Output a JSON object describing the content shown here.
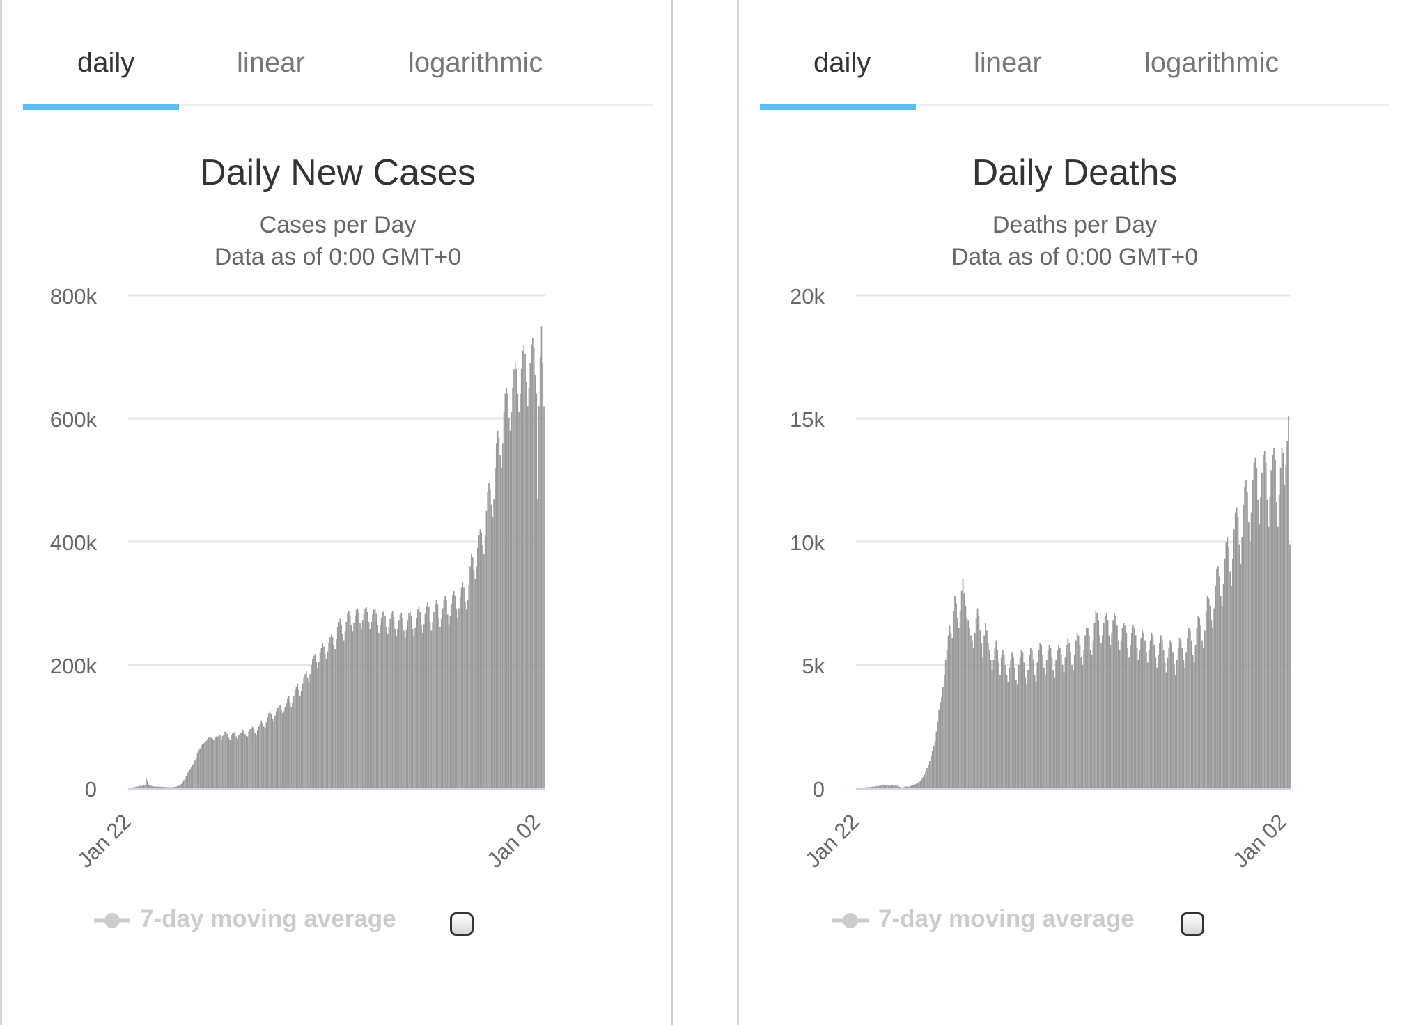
{
  "tabs": [
    "daily",
    "linear",
    "logarithmic"
  ],
  "legend_label": "7-day moving average",
  "colors": {
    "bar": "#999999",
    "grid": "#e6e6e6",
    "tab_active": "#5bc0f2",
    "axis": "#ccd6eb"
  },
  "chart_data": [
    {
      "type": "bar",
      "title": "Daily New Cases",
      "subtitle": "Cases per Day",
      "subtitle2": "Data as of 0:00 GMT+0",
      "xlabel": "",
      "ylabel": "",
      "x_tick_labels": [
        "Jan 22",
        "Jan 02"
      ],
      "y_tick_labels": [
        "0",
        "200k",
        "400k",
        "600k",
        "800k"
      ],
      "ylim": [
        0,
        800000
      ],
      "grid": true,
      "legend": "bottom-left",
      "series": [
        {
          "name": "7-day moving average",
          "values": [
            600,
            500,
            700,
            1000,
            1500,
            2000,
            2500,
            2700,
            3500,
            4000,
            3800,
            4000,
            4500,
            4800,
            16000,
            12000,
            6000,
            4500,
            4000,
            3500,
            3000,
            2800,
            2700,
            2600,
            2600,
            2500,
            2400,
            2300,
            2200,
            2100,
            2000,
            1800,
            1700,
            1600,
            1500,
            1800,
            2000,
            2500,
            3000,
            3500,
            4000,
            5000,
            7000,
            10000,
            13000,
            15000,
            20000,
            25000,
            28000,
            30000,
            35000,
            38000,
            40000,
            45000,
            50000,
            58000,
            62000,
            65000,
            70000,
            72000,
            73000,
            75000,
            77000,
            80000,
            82000,
            83000,
            82000,
            80000,
            79000,
            82000,
            84000,
            84000,
            85000,
            86000,
            78000,
            85000,
            86000,
            92000,
            90000,
            88000,
            82000,
            78000,
            86000,
            90000,
            89000,
            92000,
            84000,
            80000,
            86000,
            90000,
            90000,
            94000,
            93000,
            88000,
            85000,
            84000,
            92000,
            96000,
            98000,
            100000,
            97000,
            90000,
            86000,
            94000,
            100000,
            104000,
            110000,
            106000,
            100000,
            97000,
            107000,
            115000,
            122000,
            125000,
            120000,
            112000,
            108000,
            118000,
            125000,
            130000,
            133000,
            135000,
            128000,
            122000,
            125000,
            132000,
            138000,
            145000,
            150000,
            140000,
            132000,
            138000,
            150000,
            160000,
            165000,
            170000,
            160000,
            150000,
            158000,
            170000,
            180000,
            185000,
            190000,
            180000,
            172000,
            185000,
            200000,
            210000,
            215000,
            218000,
            205000,
            195000,
            205000,
            220000,
            228000,
            235000,
            230000,
            218000,
            210000,
            222000,
            235000,
            245000,
            250000,
            245000,
            232000,
            226000,
            242000,
            262000,
            270000,
            275000,
            265000,
            250000,
            240000,
            255000,
            270000,
            283000,
            288000,
            280000,
            265000,
            255000,
            268000,
            280000,
            290000,
            292000,
            285000,
            268000,
            258000,
            272000,
            283000,
            292000,
            294000,
            286000,
            270000,
            258000,
            270000,
            282000,
            290000,
            292000,
            283000,
            265000,
            252000,
            264000,
            277000,
            286000,
            288000,
            280000,
            262000,
            250000,
            262000,
            275000,
            285000,
            287000,
            278000,
            258000,
            246000,
            258000,
            272000,
            282000,
            285000,
            276000,
            256000,
            244000,
            257000,
            272000,
            284000,
            288000,
            279000,
            258000,
            246000,
            260000,
            276000,
            290000,
            295000,
            286000,
            264000,
            252000,
            266000,
            283000,
            296000,
            302000,
            294000,
            270000,
            256000,
            270000,
            286000,
            300000,
            306000,
            298000,
            276000,
            262000,
            275000,
            292000,
            306000,
            312000,
            305000,
            282000,
            266000,
            280000,
            298000,
            314000,
            320000,
            312000,
            290000,
            276000,
            292000,
            310000,
            326000,
            334000,
            326000,
            302000,
            290000,
            305000,
            330000,
            360000,
            380000,
            375000,
            355000,
            340000,
            360000,
            390000,
            410000,
            420000,
            415000,
            395000,
            380000,
            410000,
            450000,
            480000,
            495000,
            485000,
            460000,
            440000,
            470000,
            520000,
            560000,
            580000,
            570000,
            540000,
            520000,
            560000,
            610000,
            640000,
            650000,
            640000,
            600000,
            580000,
            610000,
            650000,
            680000,
            690000,
            680000,
            640000,
            610000,
            640000,
            680000,
            710000,
            720000,
            705000,
            660000,
            620000,
            650000,
            690000,
            720000,
            730000,
            715000,
            670000,
            640000,
            470000,
            620000,
            700000,
            750000,
            690000,
            620000
          ]
        }
      ]
    },
    {
      "type": "bar",
      "title": "Daily Deaths",
      "subtitle": "Deaths per Day",
      "subtitle2": "Data as of 0:00 GMT+0",
      "xlabel": "",
      "ylabel": "",
      "x_tick_labels": [
        "Jan 22",
        "Jan 02"
      ],
      "y_tick_labels": [
        "0",
        "5k",
        "10k",
        "15k",
        "20k"
      ],
      "ylim": [
        0,
        20000
      ],
      "grid": true,
      "legend": "bottom-left",
      "series": [
        {
          "name": "7-day moving average",
          "values": [
            17,
            0,
            10,
            15,
            25,
            25,
            30,
            38,
            43,
            46,
            45,
            57,
            64,
            66,
            73,
            86,
            89,
            97,
            108,
            97,
            146,
            121,
            143,
            142,
            105,
            98,
            136,
            115,
            118,
            109,
            97,
            150,
            71,
            52,
            29,
            44,
            47,
            80,
            62,
            63,
            80,
            98,
            120,
            130,
            160,
            180,
            220,
            260,
            310,
            380,
            450,
            550,
            680,
            820,
            950,
            1100,
            1300,
            1500,
            1700,
            1900,
            2300,
            2700,
            3200,
            3500,
            3700,
            4100,
            4600,
            5200,
            5600,
            6200,
            6600,
            6300,
            6100,
            7200,
            7800,
            7500,
            6900,
            6500,
            7200,
            8000,
            8500,
            7900,
            7400,
            6900,
            6800,
            6500,
            6200,
            6000,
            5700,
            6300,
            6900,
            7300,
            7000,
            6400,
            5900,
            5300,
            6200,
            6700,
            6400,
            5900,
            5600,
            5200,
            4800,
            5200,
            5700,
            6000,
            5600,
            5100,
            4600,
            5300,
            5600,
            5400,
            5000,
            4600,
            4300,
            4900,
            5200,
            5500,
            5300,
            4900,
            4400,
            4200,
            5000,
            5300,
            5600,
            5500,
            5100,
            4500,
            4200,
            4800,
            5400,
            5700,
            5600,
            5200,
            4600,
            4300,
            5100,
            5600,
            5900,
            5800,
            5400,
            4900,
            4600,
            5200,
            5600,
            5800,
            5700,
            5300,
            4800,
            4500,
            5200,
            5600,
            5800,
            5700,
            5400,
            5000,
            4700,
            5300,
            5800,
            6100,
            5900,
            5500,
            5000,
            4800,
            5400,
            6000,
            6300,
            6200,
            5800,
            5300,
            5000,
            5600,
            6200,
            6500,
            6500,
            6200,
            5600,
            5400,
            6000,
            6700,
            7200,
            7100,
            6800,
            6200,
            5900,
            6200,
            6700,
            7000,
            7100,
            6800,
            6200,
            5800,
            6300,
            6800,
            7100,
            7000,
            6600,
            6000,
            5600,
            6000,
            6500,
            6700,
            6600,
            6300,
            5700,
            5300,
            5800,
            6300,
            6600,
            6500,
            6200,
            5700,
            5200,
            5600,
            6100,
            6400,
            6300,
            6000,
            5500,
            5100,
            5600,
            6000,
            6300,
            6200,
            5800,
            5300,
            4900,
            5400,
            5900,
            6200,
            6000,
            5600,
            5100,
            4700,
            5300,
            5700,
            6000,
            5900,
            5500,
            5000,
            4600,
            5200,
            5700,
            6100,
            6000,
            5700,
            5200,
            4900,
            5500,
            6100,
            6500,
            6400,
            6000,
            5400,
            5100,
            5800,
            6500,
            7000,
            6900,
            6600,
            6000,
            5700,
            6400,
            7200,
            7800,
            7700,
            7400,
            6800,
            6500,
            7300,
            8200,
            8900,
            9000,
            8600,
            7800,
            7400,
            8300,
            9300,
            10000,
            10200,
            9800,
            8800,
            8200,
            9300,
            10500,
            11200,
            11400,
            11000,
            9900,
            9100,
            10200,
            11500,
            12200,
            12500,
            12000,
            10800,
            10000,
            11200,
            12500,
            13200,
            13400,
            13000,
            11700,
            10700,
            11800,
            12800,
            13500,
            13700,
            13200,
            11700,
            10600,
            11800,
            12900,
            13500,
            13800,
            13300,
            11600,
            10600,
            11900,
            13000,
            13800,
            13600,
            12300,
            13100,
            14100,
            15100,
            9900
          ]
        }
      ]
    }
  ]
}
